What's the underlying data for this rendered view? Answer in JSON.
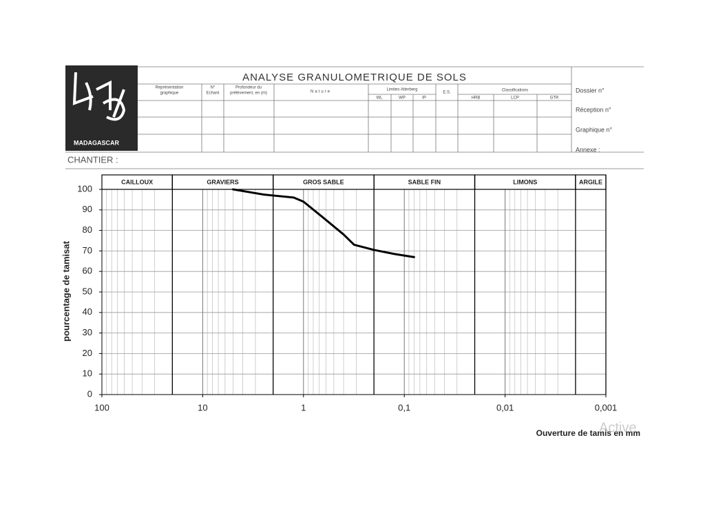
{
  "header": {
    "title": "ANALYSE GRANULOMETRIQUE DE SOLS",
    "logo_text": "MADAGASCAR",
    "columns": [
      [
        "Représentation",
        "graphique"
      ],
      [
        "N°",
        "Echant"
      ],
      [
        "Profondeur du",
        "prélèvement, en (m)"
      ],
      [
        "Nature"
      ],
      [
        "Limites Atterberg"
      ],
      [
        "E.S."
      ],
      [
        "Classifications"
      ]
    ],
    "atterberg": [
      "WL",
      "WP",
      "IP"
    ],
    "classifications": [
      "HRB",
      "LCP",
      "GTR"
    ],
    "fields": [
      "Dossier n°",
      "Réception n°",
      "Graphique n°",
      "Annexe :"
    ],
    "chantier": "CHANTIER :"
  },
  "chart_data": {
    "type": "line",
    "x_label": "Ouverture de tamis en mm",
    "y_label": "pourcentage de tamisat",
    "log_x": true,
    "grid": true,
    "xlim": [
      100,
      0.001
    ],
    "ylim": [
      0,
      100
    ],
    "xticks": [
      100,
      10,
      1,
      {
        "value": 0.1,
        "label": "0,1"
      },
      {
        "value": 0.01,
        "label": "0,01"
      },
      {
        "value": 0.001,
        "label": "0,001"
      }
    ],
    "yticks": [
      0,
      10,
      20,
      30,
      40,
      50,
      60,
      70,
      80,
      90,
      100
    ],
    "zones": [
      {
        "label": "CAILLOUX",
        "from": 100,
        "to": 20
      },
      {
        "label": "GRAVIERS",
        "from": 20,
        "to": 2
      },
      {
        "label": "GROS SABLE",
        "from": 2,
        "to": 0.2
      },
      {
        "label": "SABLE FIN",
        "from": 0.2,
        "to": 0.02
      },
      {
        "label": "LIMONS",
        "from": 0.02,
        "to": 0.002
      },
      {
        "label": "ARGILE",
        "from": 0.002,
        "to": 0.001
      }
    ],
    "x": [
      5,
      2.5,
      2,
      1.25,
      1,
      0.63,
      0.4,
      0.315,
      0.2,
      0.125,
      0.08
    ],
    "series": [
      {
        "color": "#000000",
        "values": [
          100,
          97.5,
          97,
          96,
          94,
          86,
          78,
          73,
          70.5,
          68.5,
          67
        ]
      }
    ],
    "watermark": "Active"
  }
}
